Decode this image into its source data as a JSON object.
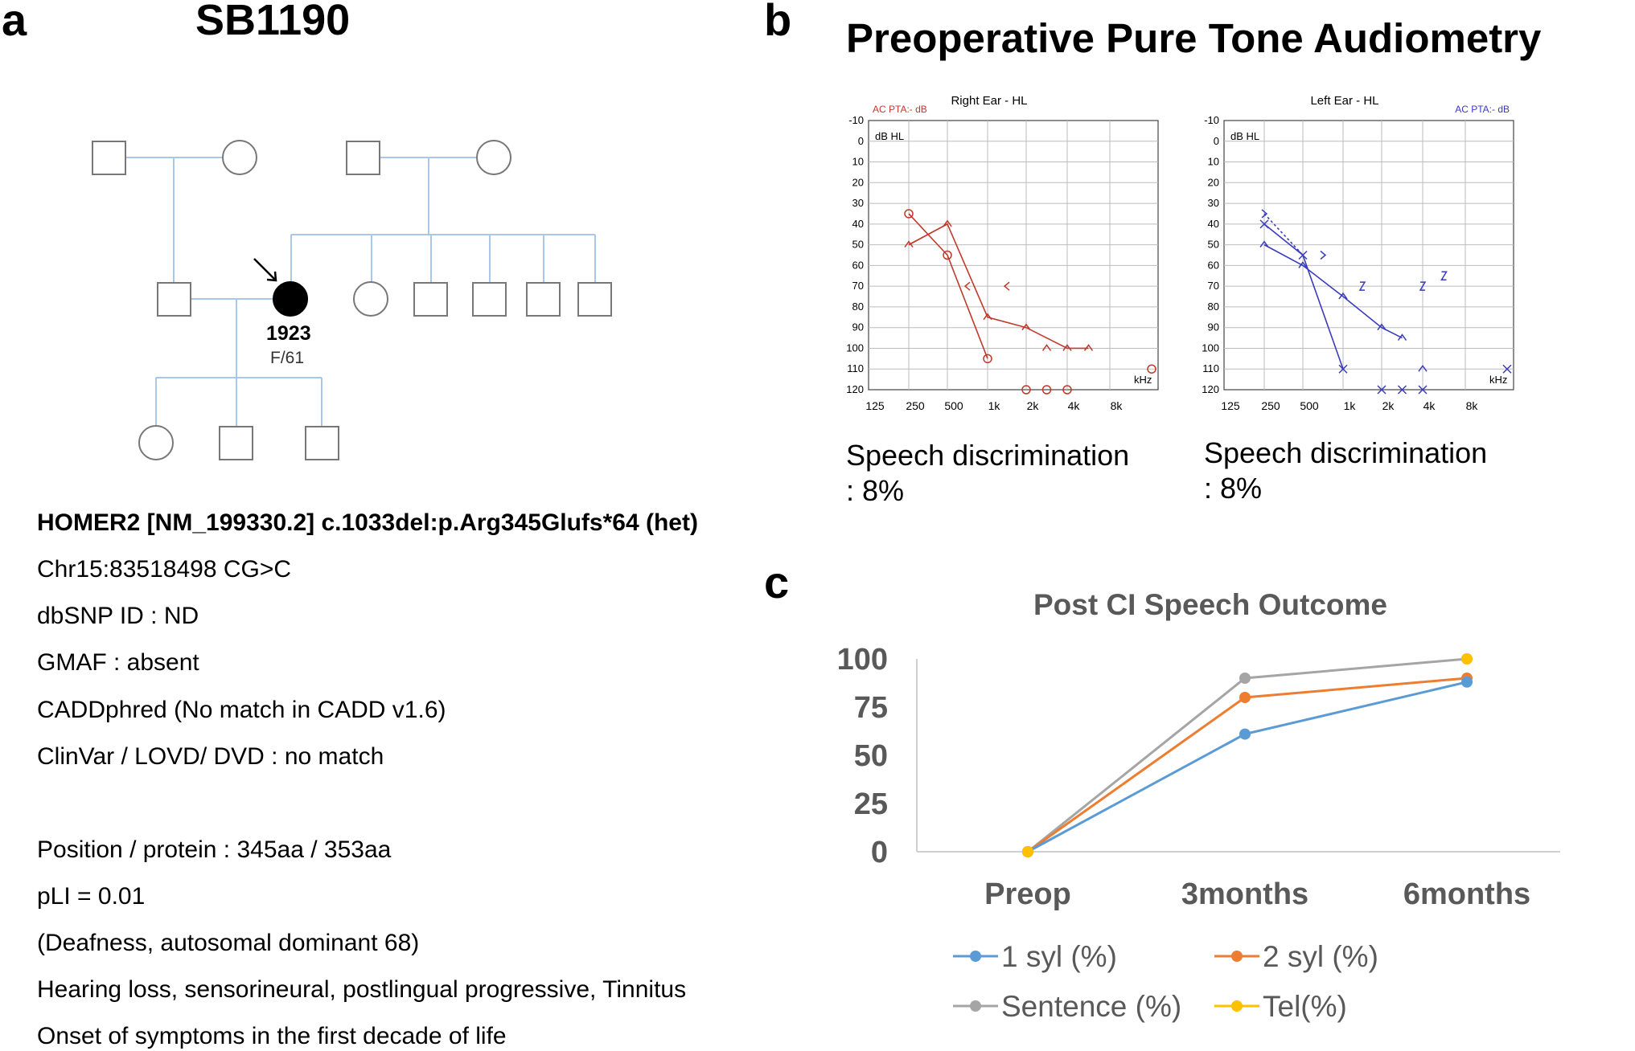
{
  "panel_a": {
    "letter": "a",
    "family_id": "SB1190",
    "proband_id": "1923",
    "proband_info": "F/61",
    "variant_lines": [
      "HOMER2 [NM_199330.2] c.1033del:p.Arg345Glufs*64 (het)",
      "Chr15:83518498 CG>C",
      "dbSNP ID : ND",
      "GMAF : absent",
      "CADDphred (No match in CADD v1.6)",
      "ClinVar / LOVD/ DVD : no match",
      "Position / protein : 345aa / 353aa",
      "pLI = 0.01",
      "(Deafness, autosomal dominant 68)",
      "Hearing loss, sensorineural, postlingual progressive, Tinnitus",
      "Onset of symptoms in the first decade of life"
    ]
  },
  "panel_b": {
    "letter": "b",
    "title": "Preoperative Pure Tone Audiometry",
    "y_ticks": [
      "-10",
      "0",
      "10",
      "20",
      "30",
      "40",
      "50",
      "60",
      "70",
      "80",
      "90",
      "100",
      "110",
      "120"
    ],
    "x_ticks": [
      "125",
      "250",
      "500",
      "1k",
      "2k",
      "4k",
      "8k"
    ],
    "unit_y": "dB HL",
    "unit_x": "kHz",
    "right_ear": {
      "title": "Right Ear - HL",
      "pta": "AC PTA:- dB",
      "color": "#c0392b",
      "speech_label": "Speech discrimination",
      "speech_value": ": 8%"
    },
    "left_ear": {
      "title": "Left Ear - HL",
      "pta": "AC PTA:- dB",
      "color": "#3b3bbd",
      "speech_label": "Speech discrimination",
      "speech_value": ": 8%"
    }
  },
  "chart_data": {
    "type": "line",
    "title": "Post CI Speech Outcome",
    "categories": [
      "Preop",
      "3months",
      "6months"
    ],
    "ylim": [
      0,
      100
    ],
    "y_ticks": [
      0,
      25,
      50,
      75,
      100
    ],
    "series": [
      {
        "name": "1 syl (%)",
        "color": "#5b9bd5",
        "values": [
          0,
          61,
          88
        ]
      },
      {
        "name": "2 syl (%)",
        "color": "#ed7d31",
        "values": [
          0,
          80,
          90
        ]
      },
      {
        "name": "Sentence (%)",
        "color": "#a5a5a5",
        "values": [
          0,
          90,
          100
        ]
      },
      {
        "name": "Tel(%)",
        "color": "#ffc000",
        "values": [
          0,
          null,
          100
        ]
      }
    ]
  },
  "panel_c": {
    "letter": "c"
  }
}
